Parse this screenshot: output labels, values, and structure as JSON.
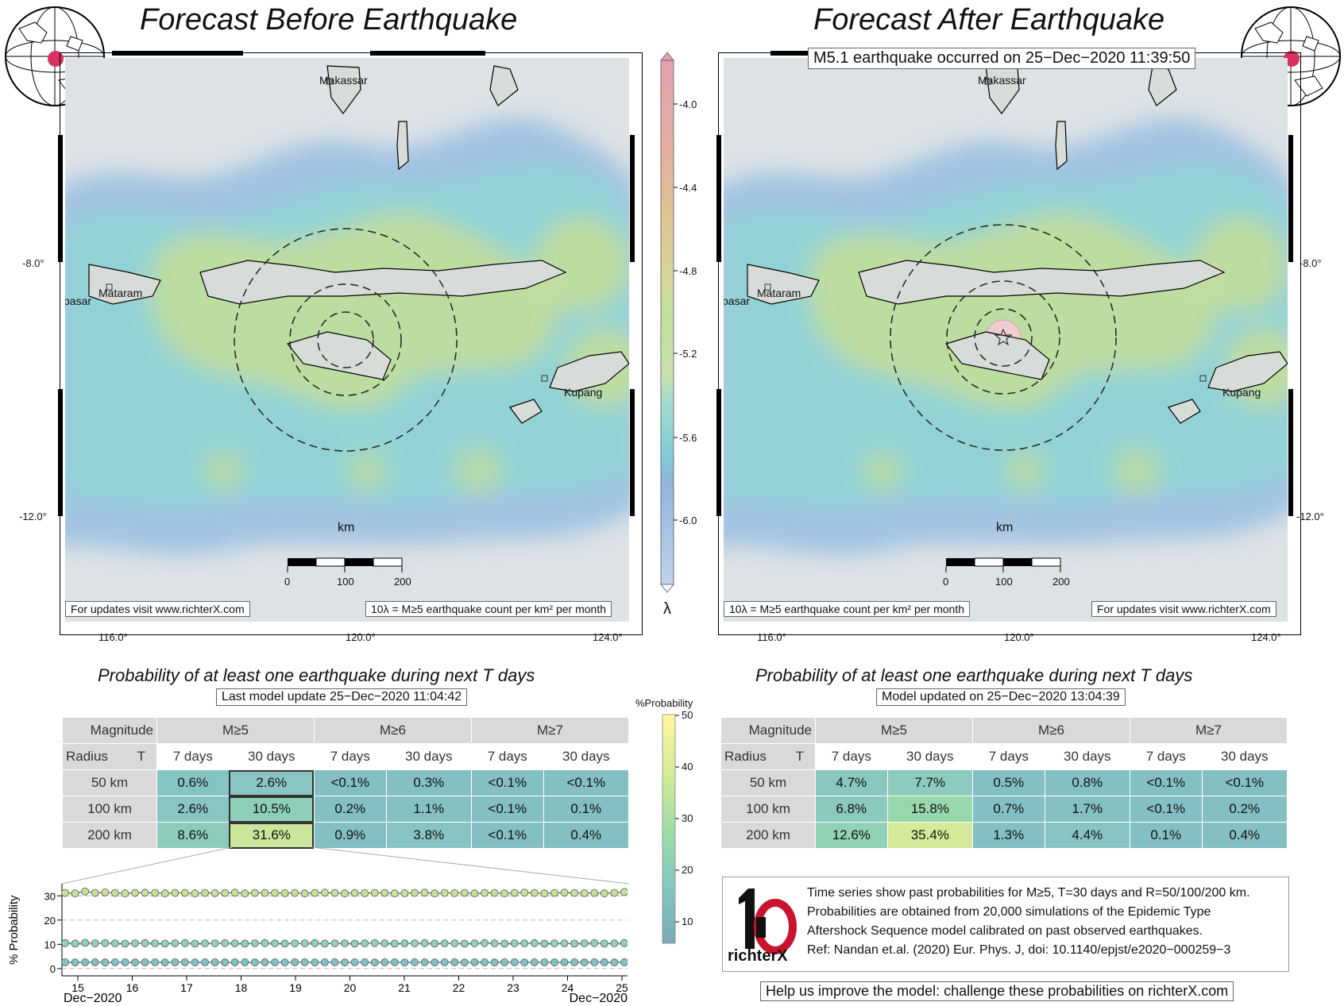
{
  "left_panel": {
    "title": "Forecast Before Earthquake",
    "places": [
      "Makassar",
      "Mataram",
      "pasar",
      "Kupang"
    ],
    "scale_km": "km",
    "scale_ticks": [
      "0",
      "100",
      "200"
    ],
    "footer_left": "For updates visit www.richterX.com",
    "footer_right": "10λ = M≥5 earthquake count per km² per month",
    "lon_ticks": [
      "116.0°",
      "120.0°",
      "124.0°"
    ],
    "lat_ticks": [
      "-8.0°",
      "-12.0°"
    ]
  },
  "right_panel": {
    "title": "Forecast After Earthquake",
    "event_label": "M5.1 earthquake occurred on 25−Dec−2020 11:39:50",
    "places": [
      "Makassar",
      "Mataram",
      "pasar",
      "Kupang"
    ],
    "scale_km": "km",
    "scale_ticks": [
      "0",
      "100",
      "200"
    ],
    "footer_left": "10λ = M≥5 earthquake count per km² per month",
    "footer_right": "For updates visit www.richterX.com",
    "lon_ticks": [
      "116.0°",
      "120.0°",
      "124.0°"
    ],
    "lat_ticks": [
      "-8.0°",
      "-12.0°"
    ]
  },
  "rate_colorbar": {
    "label": "λ",
    "ticks": [
      "-4.0",
      "-4.4",
      "-4.8",
      "-5.2",
      "-5.6",
      "-6.0"
    ],
    "colors": [
      "#e6a3ad",
      "#e7b190",
      "#e4c692",
      "#c8dd95",
      "#a7d8c4",
      "#88c9d6",
      "#8fb4de",
      "#b2c9ea"
    ]
  },
  "prob_colorbar": {
    "label": "%Probability",
    "ticks": [
      "50",
      "40",
      "30",
      "20",
      "10"
    ]
  },
  "left_table": {
    "title": "Probability of at least one earthquake during next T days",
    "update": "Last model update 25−Dec−2020 11:04:42",
    "corner_top": "Magnitude",
    "corner_radius": "Radius",
    "corner_t": "T",
    "magnitudes": [
      "M≥5",
      "M≥6",
      "M≥7"
    ],
    "periods": [
      "7 days",
      "30 days",
      "7 days",
      "30 days",
      "7 days",
      "30 days"
    ],
    "radii": [
      "50 km",
      "100 km",
      "200 km"
    ],
    "values": [
      [
        "0.6%",
        "2.6%",
        "<0.1%",
        "0.3%",
        "<0.1%",
        "<0.1%"
      ],
      [
        "2.6%",
        "10.5%",
        "0.2%",
        "1.1%",
        "<0.1%",
        "0.1%"
      ],
      [
        "8.6%",
        "31.6%",
        "0.9%",
        "3.8%",
        "<0.1%",
        "0.4%"
      ]
    ]
  },
  "right_table": {
    "title": "Probability of at least one earthquake during next T days",
    "update": "Model updated on 25−Dec−2020 13:04:39",
    "corner_top": "Magnitude",
    "corner_radius": "Radius",
    "corner_t": "T",
    "magnitudes": [
      "M≥5",
      "M≥6",
      "M≥7"
    ],
    "periods": [
      "7 days",
      "30 days",
      "7 days",
      "30 days",
      "7 days",
      "30 days"
    ],
    "radii": [
      "50 km",
      "100 km",
      "200 km"
    ],
    "values": [
      [
        "4.7%",
        "7.7%",
        "0.5%",
        "0.8%",
        "<0.1%",
        "<0.1%"
      ],
      [
        "6.8%",
        "15.8%",
        "0.7%",
        "1.7%",
        "<0.1%",
        "0.2%"
      ],
      [
        "12.6%",
        "35.4%",
        "1.3%",
        "4.4%",
        "0.1%",
        "0.4%"
      ]
    ]
  },
  "chart_data": {
    "type": "line",
    "ylabel": "% Probability",
    "yticks": [
      0,
      10,
      20,
      30
    ],
    "ylim": [
      -3,
      35
    ],
    "xticks": [
      "15",
      "16",
      "17",
      "18",
      "19",
      "20",
      "21",
      "22",
      "23",
      "24",
      "25"
    ],
    "x_start_label": "Dec−2020",
    "x_end_label": "Dec−2020",
    "series": [
      {
        "values": [
          31.2,
          31.0,
          31.8,
          31.2,
          31.4,
          31.2,
          31.0,
          31.2,
          31.3,
          31.2,
          31.0,
          31.2,
          31.2,
          31.0,
          31.2,
          31.1,
          31.2,
          31.3,
          31.0,
          31.2,
          31.2,
          31.2,
          31.1,
          31.2,
          31.0,
          31.2,
          31.3,
          31.2,
          31.0,
          31.2,
          31.1,
          31.2,
          31.2,
          31.0,
          31.1,
          31.2,
          31.3,
          31.0,
          31.2,
          31.1,
          31.2,
          31.0,
          31.2,
          31.2,
          31.0,
          31.2,
          31.3,
          31.2,
          31.0,
          31.2,
          31.3,
          31.2,
          31.1,
          31.2,
          31.0,
          31.2,
          31.6
        ]
      },
      {
        "values": [
          10.5,
          10.3,
          10.6,
          10.4,
          10.5,
          10.4,
          10.3,
          10.4,
          10.5,
          10.4,
          10.3,
          10.4,
          10.5,
          10.3,
          10.4,
          10.4,
          10.5,
          10.4,
          10.3,
          10.4,
          10.5,
          10.4,
          10.3,
          10.4,
          10.4,
          10.5,
          10.3,
          10.4,
          10.4,
          10.3,
          10.4,
          10.5,
          10.4,
          10.3,
          10.4,
          10.4,
          10.5,
          10.3,
          10.4,
          10.4,
          10.3,
          10.4,
          10.5,
          10.4,
          10.3,
          10.4,
          10.4,
          10.5,
          10.3,
          10.4,
          10.4,
          10.3,
          10.4,
          10.5,
          10.3,
          10.4,
          10.5
        ]
      },
      {
        "values": [
          2.6,
          2.5,
          2.6,
          2.6,
          2.5,
          2.6,
          2.6,
          2.5,
          2.6,
          2.6,
          2.5,
          2.6,
          2.6,
          2.5,
          2.6,
          2.6,
          2.5,
          2.6,
          2.6,
          2.5,
          2.6,
          2.6,
          2.5,
          2.6,
          2.6,
          2.5,
          2.6,
          2.6,
          2.5,
          2.6,
          2.6,
          2.5,
          2.6,
          2.6,
          2.5,
          2.6,
          2.6,
          2.5,
          2.6,
          2.6,
          2.5,
          2.6,
          2.6,
          2.5,
          2.6,
          2.6,
          2.5,
          2.6,
          2.6,
          2.5,
          2.6,
          2.6,
          2.5,
          2.6,
          2.6,
          2.5,
          2.6
        ]
      }
    ]
  },
  "info": {
    "lines": [
      "Time series show past probabilities for M≥5, T=30 days and R=50/100/200 km.",
      "Probabilities are obtained from 20,000 simulations of the Epidemic Type",
      "Aftershock Sequence model calibrated on past observed earthquakes.",
      "Ref: Nandan et.al. (2020) Eur. Phys. J, doi: 10.1140/epjst/e2020−000259−3"
    ],
    "logo_text": "richterX",
    "help": "Help us improve the model: challenge these probabilities on richterX.com"
  }
}
